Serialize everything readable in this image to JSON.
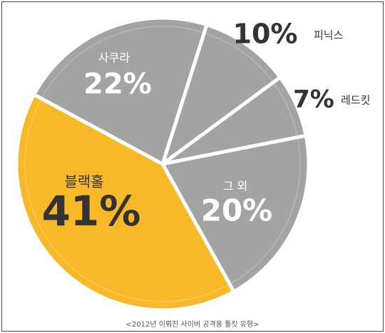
{
  "chart_data": {
    "type": "pie",
    "caption": "<2012년 이뤄진 사이버 공격용 툴킷 유형>",
    "categories": [
      "피닉스",
      "레드킷",
      "그 외",
      "블랙홀",
      "사쿠라"
    ],
    "values": [
      10,
      7,
      20,
      41,
      22
    ],
    "value_labels": [
      "10%",
      "7%",
      "20%",
      "41%",
      "22%"
    ],
    "colors": [
      "#a3a3a3",
      "#a3a3a3",
      "#a3a3a3",
      "#f7b928",
      "#a3a3a3"
    ]
  }
}
